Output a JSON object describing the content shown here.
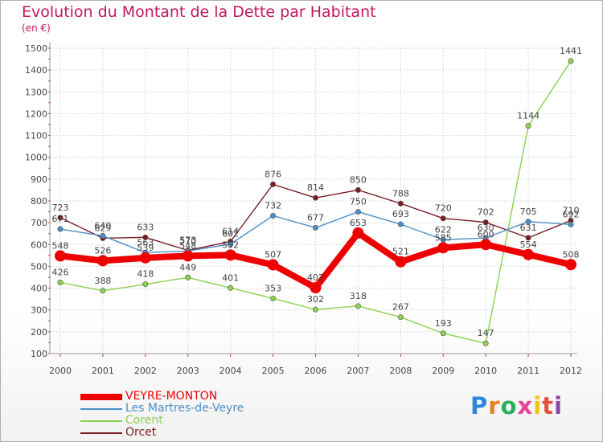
{
  "chart_data": {
    "type": "line",
    "title": "Evolution du Montant de la Dette par Habitant",
    "subtitle": "(en €)",
    "x": [
      "2000",
      "2001",
      "2002",
      "2003",
      "2004",
      "2005",
      "2006",
      "2007",
      "2008",
      "2009",
      "2010",
      "2011",
      "2012"
    ],
    "yticks": [
      100,
      200,
      300,
      400,
      500,
      600,
      700,
      800,
      900,
      1000,
      1100,
      1200,
      1300,
      1400,
      1500
    ],
    "ylim": [
      100,
      1500
    ],
    "grid": true,
    "legend_position": "bottom-left",
    "series": [
      {
        "name": "Orcet",
        "color": "#7b1c24",
        "values": [
          723,
          629,
          633,
          573,
          614,
          876,
          814,
          850,
          788,
          720,
          702,
          631,
          710
        ],
        "labels": [
          "723",
          "629",
          "633",
          "573",
          "614",
          "876",
          "814",
          "850",
          "788",
          "720",
          "702",
          "631",
          "710"
        ]
      },
      {
        "name": "Corent",
        "color": "#8cd14e",
        "values": [
          426,
          388,
          418,
          449,
          401,
          353,
          302,
          318,
          267,
          193,
          147,
          1144,
          1441
        ],
        "labels": [
          "426",
          "388",
          "418",
          "449",
          "401",
          "353",
          "302",
          "318",
          "267",
          "193",
          "147",
          "1144",
          "1441"
        ]
      },
      {
        "name": "Les Martres-de-Veyre",
        "color": "#4a8fc8",
        "values": [
          671,
          640,
          563,
          570,
          602,
          732,
          677,
          750,
          693,
          622,
          630,
          705,
          692
        ],
        "labels": [
          "671",
          "640",
          "563",
          "570",
          "602",
          "732",
          "677",
          "750",
          "693",
          "622",
          "630",
          "705",
          "692"
        ]
      },
      {
        "name": "VEYRE-MONTON",
        "color": "#ee0000",
        "values": [
          548,
          526,
          539,
          548,
          552,
          507,
          402,
          653,
          521,
          585,
          600,
          554,
          508
        ],
        "labels": [
          "548",
          "526",
          "539",
          "548",
          "552",
          "507",
          "402",
          "653",
          "521",
          "585",
          "600",
          "554",
          "508"
        ]
      }
    ]
  },
  "legend": [
    {
      "name": "VEYRE-MONTON",
      "color": "#ee0000"
    },
    {
      "name": "Les Martres-de-Veyre",
      "color": "#4a8fc8"
    },
    {
      "name": "Corent",
      "color": "#8cd14e"
    },
    {
      "name": "Orcet",
      "color": "#7b1c24"
    }
  ],
  "logo": {
    "text": "Proxiti",
    "colors": [
      "#2e86de",
      "#e67e22",
      "#27ae60",
      "#e84393",
      "#f1c40f",
      "#e74c3c",
      "#8e44ad"
    ]
  }
}
